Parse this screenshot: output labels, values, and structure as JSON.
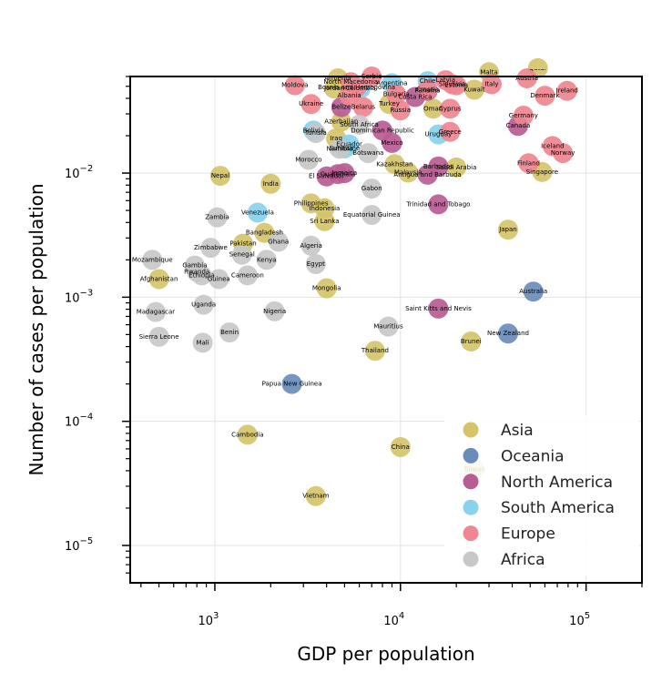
{
  "chart_data": {
    "type": "scatter",
    "title": "",
    "xlabel": "GDP per population",
    "ylabel": "Number of cases per population",
    "xscale": "log",
    "yscale": "log",
    "xlim": [
      350,
      200000
    ],
    "ylim": [
      5e-06,
      0.06
    ],
    "x_tick_labels": [
      {
        "value": 1000,
        "base": "10",
        "exp": "3"
      },
      {
        "value": 10000,
        "base": "10",
        "exp": "4"
      },
      {
        "value": 100000,
        "base": "10",
        "exp": "5"
      }
    ],
    "y_tick_labels": [
      {
        "value": 1e-05,
        "base": "10",
        "exp": "−5"
      },
      {
        "value": 0.0001,
        "base": "10",
        "exp": "−4"
      },
      {
        "value": 0.001,
        "base": "10",
        "exp": "−3"
      },
      {
        "value": 0.01,
        "base": "10",
        "exp": "−2"
      }
    ],
    "grid": true,
    "legend_position": "bottom-right",
    "colors": {
      "Asia": "#d5c46a",
      "Oceania": "#6a8cba",
      "North America": "#b85c92",
      "South America": "#88d2ee",
      "Europe": "#f08690",
      "Africa": "#c8c8c8"
    },
    "series": [
      {
        "name": "Asia",
        "points": [
          {
            "label": "Nepal",
            "x": 1070,
            "y": 0.0095
          },
          {
            "label": "India",
            "x": 2000,
            "y": 0.0082
          },
          {
            "label": "Pakistan",
            "x": 1420,
            "y": 0.0027
          },
          {
            "label": "Bangladesh",
            "x": 1850,
            "y": 0.0033
          },
          {
            "label": "Afghanistan",
            "x": 500,
            "y": 0.0014
          },
          {
            "label": "Philippines",
            "x": 3300,
            "y": 0.0057
          },
          {
            "label": "Indonesia",
            "x": 3900,
            "y": 0.0052
          },
          {
            "label": "Sri Lanka",
            "x": 3900,
            "y": 0.0041
          },
          {
            "label": "Mongolia",
            "x": 4000,
            "y": 0.00118
          },
          {
            "label": "Thailand",
            "x": 7300,
            "y": 0.00037
          },
          {
            "label": "Cambodia",
            "x": 1500,
            "y": 7.8e-05
          },
          {
            "label": "Vietnam",
            "x": 3500,
            "y": 2.5e-05
          },
          {
            "label": "China",
            "x": 10000,
            "y": 6.2e-05
          },
          {
            "label": "Taiwan",
            "x": 25000,
            "y": 4.1e-05
          },
          {
            "label": "Japan",
            "x": 38000,
            "y": 0.0035
          },
          {
            "label": "Brunei",
            "x": 24000,
            "y": 0.00044
          },
          {
            "label": "Malaysia",
            "x": 11000,
            "y": 0.0101
          },
          {
            "label": "Kazakhstan",
            "x": 9300,
            "y": 0.0118
          },
          {
            "label": "Saudi Arabia",
            "x": 20000,
            "y": 0.0111
          },
          {
            "label": "Singapore",
            "x": 58000,
            "y": 0.0102
          },
          {
            "label": "Kuwait",
            "x": 25000,
            "y": 0.047
          },
          {
            "label": "Oman",
            "x": 15000,
            "y": 0.033
          },
          {
            "label": "Turkey",
            "x": 8700,
            "y": 0.036
          },
          {
            "label": "Iraq",
            "x": 4500,
            "y": 0.019
          },
          {
            "label": "Armenia",
            "x": 4600,
            "y": 0.058
          },
          {
            "label": "Azerbaijan",
            "x": 4800,
            "y": 0.026
          },
          {
            "label": "Jordan",
            "x": 4400,
            "y": 0.048
          },
          {
            "label": "Malta",
            "x": 30000,
            "y": 0.065
          },
          {
            "label": "Qatar",
            "x": 55000,
            "y": 0.07
          }
        ]
      },
      {
        "name": "Oceania",
        "points": [
          {
            "label": "Australia",
            "x": 52000,
            "y": 0.00111
          },
          {
            "label": "New Zealand",
            "x": 38000,
            "y": 0.00051
          },
          {
            "label": "Papua New Guinea",
            "x": 2600,
            "y": 0.0002
          }
        ]
      },
      {
        "name": "North America",
        "points": [
          {
            "label": "Guatemala",
            "x": 4600,
            "y": 0.0098
          },
          {
            "label": "El Salvador",
            "x": 4000,
            "y": 0.0094
          },
          {
            "label": "Jamaica",
            "x": 5000,
            "y": 0.01
          },
          {
            "label": "Mexico",
            "x": 9000,
            "y": 0.0175
          },
          {
            "label": "Dominican Republic",
            "x": 8000,
            "y": 0.022
          },
          {
            "label": "Barbados",
            "x": 16000,
            "y": 0.0113
          },
          {
            "label": "Antigua and Barbuda",
            "x": 14000,
            "y": 0.0097
          },
          {
            "label": "Trinidad and Tobago",
            "x": 16000,
            "y": 0.0056
          },
          {
            "label": "Saint Kitts and Nevis",
            "x": 16000,
            "y": 0.00081
          },
          {
            "label": "Canada",
            "x": 43000,
            "y": 0.024
          },
          {
            "label": "Panama",
            "x": 14000,
            "y": 0.046
          },
          {
            "label": "Costa Rica",
            "x": 12000,
            "y": 0.041
          },
          {
            "label": "Belize",
            "x": 4800,
            "y": 0.034
          }
        ]
      },
      {
        "name": "South America",
        "points": [
          {
            "label": "Venezuela",
            "x": 1700,
            "y": 0.0048
          },
          {
            "label": "Ecuador",
            "x": 5300,
            "y": 0.017
          },
          {
            "label": "Suriname",
            "x": 5000,
            "y": 0.0158
          },
          {
            "label": "Bolivia",
            "x": 3400,
            "y": 0.022
          },
          {
            "label": "Colombia",
            "x": 6100,
            "y": 0.048
          },
          {
            "label": "Argentina",
            "x": 9000,
            "y": 0.053
          },
          {
            "label": "Uruguay",
            "x": 16000,
            "y": 0.0205
          },
          {
            "label": "Chile",
            "x": 14000,
            "y": 0.055
          }
        ]
      },
      {
        "name": "Europe",
        "points": [
          {
            "label": "Moldova",
            "x": 2700,
            "y": 0.051
          },
          {
            "label": "Ukraine",
            "x": 3300,
            "y": 0.036
          },
          {
            "label": "Belarus",
            "x": 6300,
            "y": 0.034
          },
          {
            "label": "Russia",
            "x": 10000,
            "y": 0.032
          },
          {
            "label": "Bulgaria",
            "x": 9500,
            "y": 0.043
          },
          {
            "label": "North Macedonia",
            "x": 5400,
            "y": 0.054
          },
          {
            "label": "Serbia",
            "x": 7000,
            "y": 0.06
          },
          {
            "label": "Bosnia and Herzegovina",
            "x": 5800,
            "y": 0.049
          },
          {
            "label": "Albania",
            "x": 5300,
            "y": 0.042
          },
          {
            "label": "Cyprus",
            "x": 18500,
            "y": 0.033
          },
          {
            "label": "Greece",
            "x": 18500,
            "y": 0.0215
          },
          {
            "label": "Croatia",
            "x": 14000,
            "y": 0.047
          },
          {
            "label": "Estonia",
            "x": 20000,
            "y": 0.051
          },
          {
            "label": "Latvia",
            "x": 17500,
            "y": 0.056
          },
          {
            "label": "Slovakia",
            "x": 19000,
            "y": 0.052
          },
          {
            "label": "Italy",
            "x": 31000,
            "y": 0.052
          },
          {
            "label": "Austria",
            "x": 48000,
            "y": 0.058
          },
          {
            "label": "Ireland",
            "x": 79000,
            "y": 0.046
          },
          {
            "label": "Denmark",
            "x": 60000,
            "y": 0.042
          },
          {
            "label": "Germany",
            "x": 46000,
            "y": 0.029
          },
          {
            "label": "Iceland",
            "x": 66000,
            "y": 0.0165
          },
          {
            "label": "Norway",
            "x": 75000,
            "y": 0.0145
          },
          {
            "label": "Finland",
            "x": 49000,
            "y": 0.012
          }
        ]
      },
      {
        "name": "Africa",
        "points": [
          {
            "label": "Morocco",
            "x": 3200,
            "y": 0.0128
          },
          {
            "label": "Namibia",
            "x": 4700,
            "y": 0.0157
          },
          {
            "label": "Tunisia",
            "x": 3500,
            "y": 0.021
          },
          {
            "label": "Botswana",
            "x": 6700,
            "y": 0.0145
          },
          {
            "label": "South Africa",
            "x": 6000,
            "y": 0.0245
          },
          {
            "label": "Gabon",
            "x": 7000,
            "y": 0.0075
          },
          {
            "label": "Equatorial Guinea",
            "x": 7000,
            "y": 0.0046
          },
          {
            "label": "Zambia",
            "x": 1030,
            "y": 0.0044
          },
          {
            "label": "Zimbabwe",
            "x": 950,
            "y": 0.0025
          },
          {
            "label": "Senegal",
            "x": 1400,
            "y": 0.0022
          },
          {
            "label": "Ghana",
            "x": 2200,
            "y": 0.0028
          },
          {
            "label": "Kenya",
            "x": 1900,
            "y": 0.002
          },
          {
            "label": "Cameroon",
            "x": 1500,
            "y": 0.0015
          },
          {
            "label": "Guinea",
            "x": 1050,
            "y": 0.0014
          },
          {
            "label": "Ethiopia",
            "x": 850,
            "y": 0.0015
          },
          {
            "label": "Rwanda",
            "x": 800,
            "y": 0.0016
          },
          {
            "label": "Gambia",
            "x": 780,
            "y": 0.0018
          },
          {
            "label": "Mozambique",
            "x": 460,
            "y": 0.002
          },
          {
            "label": "Algeria",
            "x": 3300,
            "y": 0.0026
          },
          {
            "label": "Egypt",
            "x": 3500,
            "y": 0.00185
          },
          {
            "label": "Madagascar",
            "x": 480,
            "y": 0.00076
          },
          {
            "label": "Uganda",
            "x": 870,
            "y": 0.00087
          },
          {
            "label": "Sierra Leone",
            "x": 500,
            "y": 0.00048
          },
          {
            "label": "Mali",
            "x": 860,
            "y": 0.00043
          },
          {
            "label": "Benin",
            "x": 1200,
            "y": 0.00052
          },
          {
            "label": "Nigeria",
            "x": 2100,
            "y": 0.00077
          },
          {
            "label": "Mauritius",
            "x": 8600,
            "y": 0.00058
          }
        ]
      }
    ]
  }
}
